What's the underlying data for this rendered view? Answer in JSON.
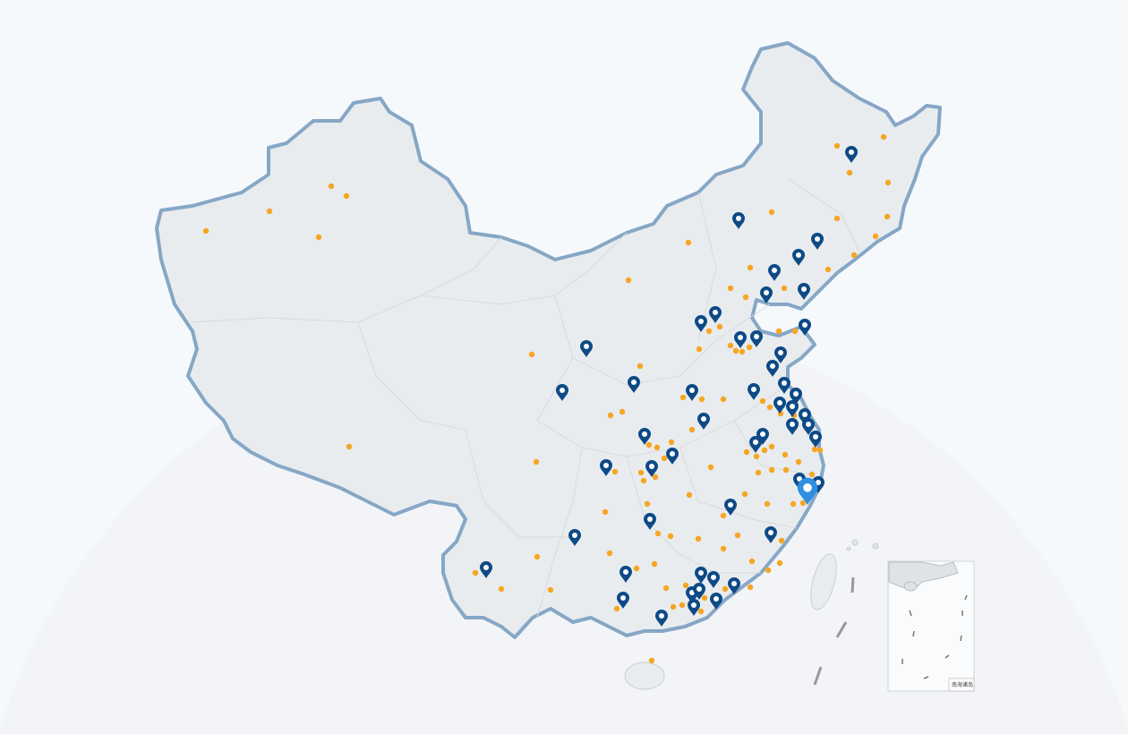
{
  "map": {
    "region": "China",
    "inset_label": "南海诸岛",
    "colors": {
      "background": "#f6f9fc",
      "backdrop_circle": "#f3f4f7",
      "land_fill": "#e9ecef",
      "border_stroke": "#86a7c6",
      "province_stroke": "#d6dade",
      "pin": "#0d4a86",
      "pin_selected": "#2f8fe0",
      "dot": "#f5a623"
    },
    "markers": {
      "pin_icon": "map-pin-icon",
      "dot_icon": "location-dot-icon",
      "selected_pin_icon": "selected-map-pin-icon"
    }
  }
}
